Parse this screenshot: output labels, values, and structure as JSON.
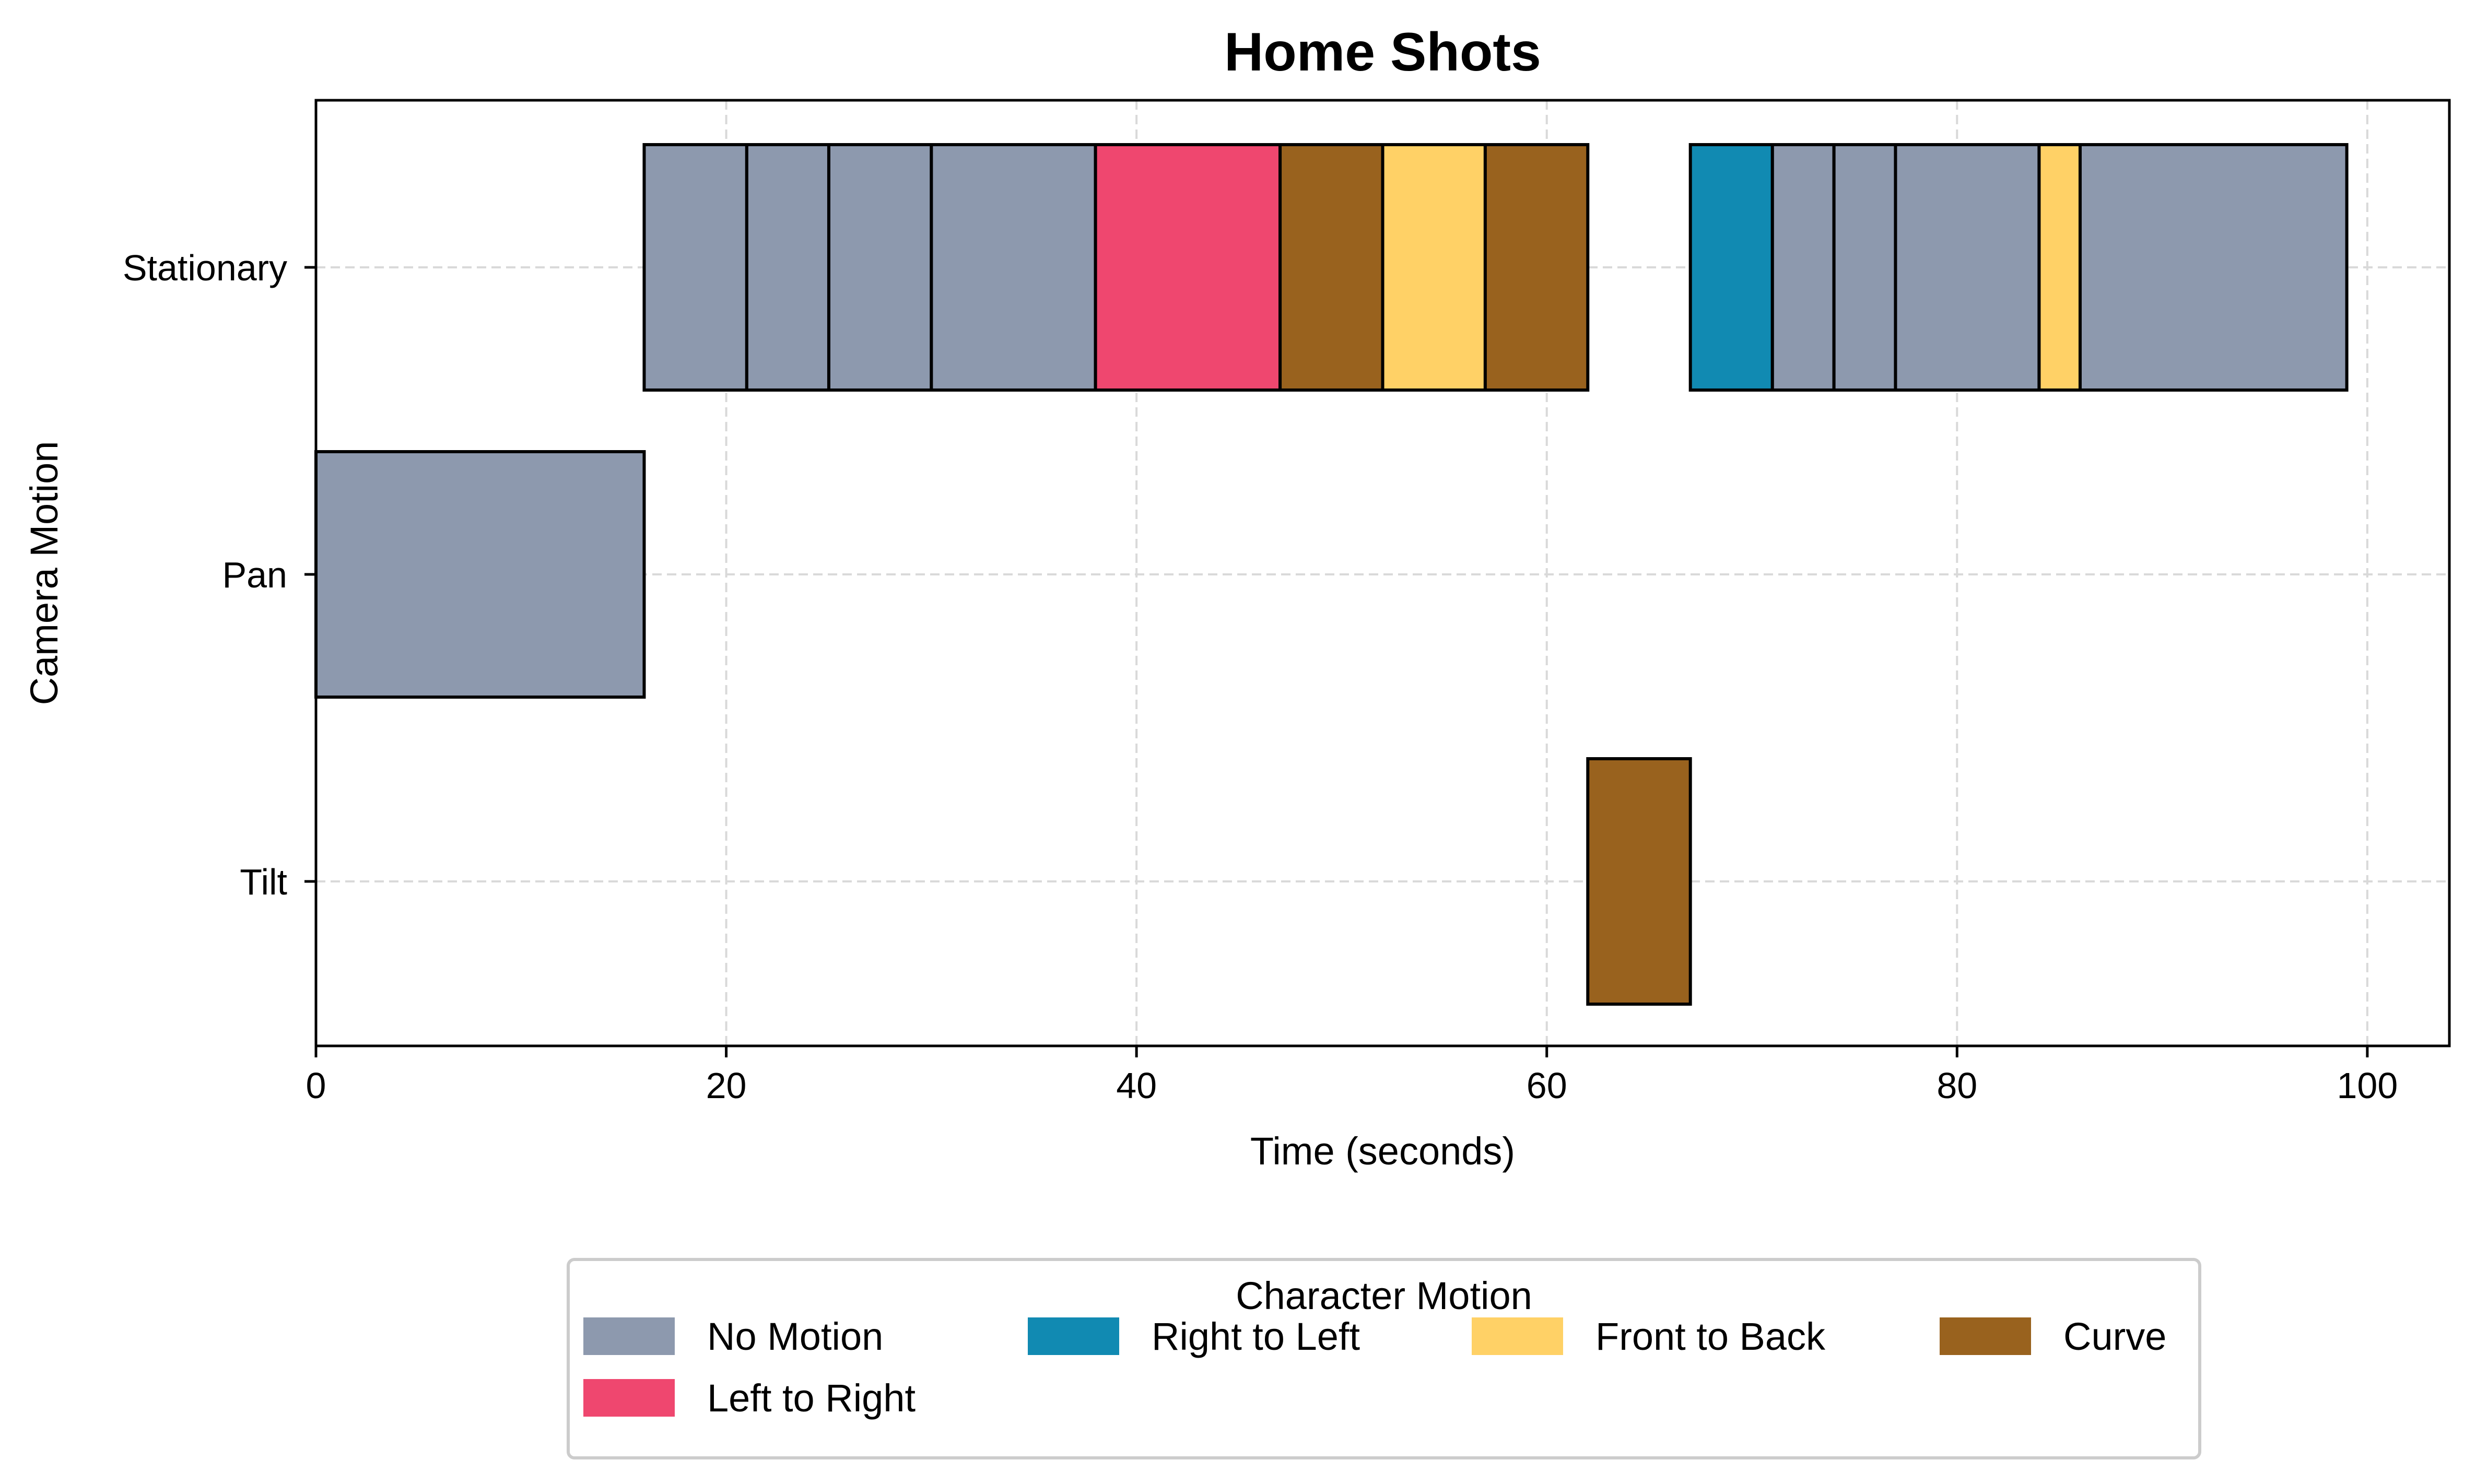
{
  "chart_data": {
    "type": "gantt",
    "title": "Home Shots",
    "xlabel": "Time (seconds)",
    "ylabel": "Camera Motion",
    "xlim": [
      0,
      104
    ],
    "xticks": [
      0,
      20,
      40,
      60,
      80,
      100
    ],
    "categories": [
      "Stationary",
      "Pan",
      "Tilt"
    ],
    "grid": true,
    "legend": {
      "title": "Character Motion",
      "placement": "bottom-center",
      "entries": [
        {
          "label": "No Motion",
          "color": "#8d99ae"
        },
        {
          "label": "Right to Left",
          "color": "#118ab2"
        },
        {
          "label": "Front to Back",
          "color": "#ffd166"
        },
        {
          "label": "Curve",
          "color": "#99621e"
        },
        {
          "label": "Left to Right",
          "color": "#ef476f"
        }
      ]
    },
    "segments": [
      {
        "camera": "Stationary",
        "start": 16,
        "end": 21,
        "motion": "No Motion"
      },
      {
        "camera": "Stationary",
        "start": 21,
        "end": 25,
        "motion": "No Motion"
      },
      {
        "camera": "Stationary",
        "start": 25,
        "end": 30,
        "motion": "No Motion"
      },
      {
        "camera": "Stationary",
        "start": 30,
        "end": 38,
        "motion": "No Motion"
      },
      {
        "camera": "Stationary",
        "start": 38,
        "end": 47,
        "motion": "Left to Right"
      },
      {
        "camera": "Stationary",
        "start": 47,
        "end": 52,
        "motion": "Curve"
      },
      {
        "camera": "Stationary",
        "start": 52,
        "end": 57,
        "motion": "Front to Back"
      },
      {
        "camera": "Stationary",
        "start": 57,
        "end": 62,
        "motion": "Curve"
      },
      {
        "camera": "Stationary",
        "start": 67,
        "end": 71,
        "motion": "Right to Left"
      },
      {
        "camera": "Stationary",
        "start": 71,
        "end": 74,
        "motion": "No Motion"
      },
      {
        "camera": "Stationary",
        "start": 74,
        "end": 77,
        "motion": "No Motion"
      },
      {
        "camera": "Stationary",
        "start": 77,
        "end": 84,
        "motion": "No Motion"
      },
      {
        "camera": "Stationary",
        "start": 84,
        "end": 86,
        "motion": "Front to Back"
      },
      {
        "camera": "Stationary",
        "start": 86,
        "end": 99,
        "motion": "No Motion"
      },
      {
        "camera": "Pan",
        "start": 0,
        "end": 16,
        "motion": "No Motion"
      },
      {
        "camera": "Tilt",
        "start": 62,
        "end": 67,
        "motion": "Curve"
      }
    ]
  }
}
